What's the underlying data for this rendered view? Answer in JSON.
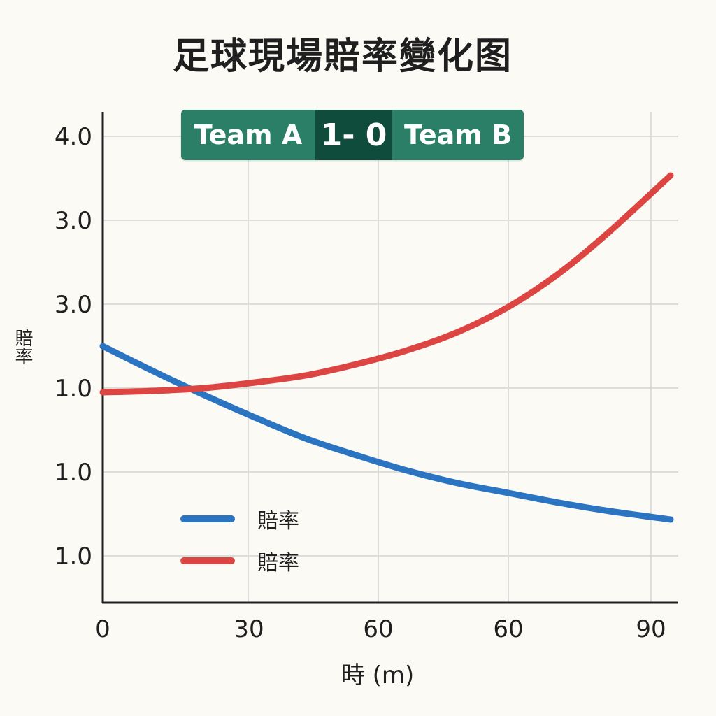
{
  "title": "足球現場賠率變化图",
  "scoreboard": {
    "home": "Team A",
    "result": "1- 0",
    "away": "Team B"
  },
  "colors": {
    "series_a": "#2a74c1",
    "series_b": "#dc4541",
    "grid": "#dddddd",
    "axis": "#1f1f1f"
  },
  "chart_data": {
    "type": "line",
    "xlabel": "時 (m)",
    "ylabel": "賠率",
    "x_tick_labels": [
      "0",
      "30",
      "60",
      "60",
      "90"
    ],
    "y_tick_labels": [
      "1.0",
      "1.0",
      "1.0",
      "3.0",
      "3.0",
      "4.0"
    ],
    "grid": true,
    "legend": {
      "position": "bottom-left"
    },
    "series": [
      {
        "name": "賠率",
        "color": "#2a74c1",
        "values": [
          [
            0,
            3.3
          ],
          [
            10,
            3.12
          ],
          [
            20,
            2.95
          ],
          [
            30,
            2.79
          ],
          [
            40,
            2.64
          ],
          [
            50,
            2.52
          ],
          [
            60,
            2.41
          ],
          [
            70,
            2.32
          ],
          [
            80,
            2.25
          ],
          [
            90,
            2.18
          ],
          [
            100,
            2.12
          ],
          [
            112,
            2.06
          ]
        ]
      },
      {
        "name": "賠率",
        "color": "#dc4541",
        "values": [
          [
            0,
            2.97
          ],
          [
            10,
            2.98
          ],
          [
            20,
            3.0
          ],
          [
            30,
            3.04
          ],
          [
            40,
            3.09
          ],
          [
            50,
            3.17
          ],
          [
            60,
            3.27
          ],
          [
            70,
            3.4
          ],
          [
            80,
            3.58
          ],
          [
            90,
            3.82
          ],
          [
            100,
            4.12
          ],
          [
            112,
            4.52
          ]
        ]
      }
    ]
  }
}
